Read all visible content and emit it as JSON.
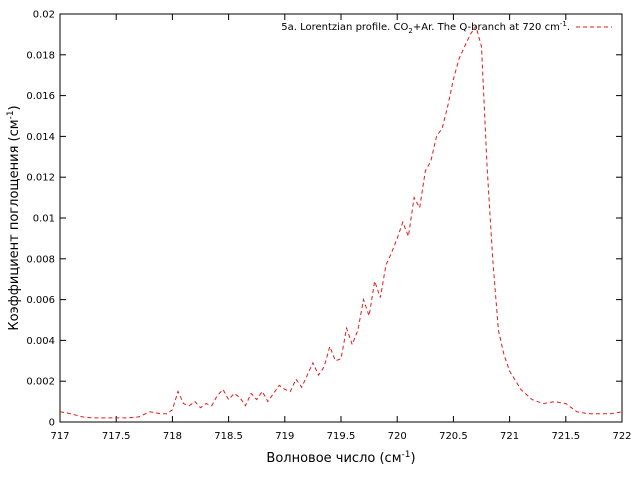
{
  "chart_data": {
    "type": "line",
    "title": "",
    "xlabel": {
      "base": "Волновое число (см",
      "sup": "-1",
      "tail": ")"
    },
    "ylabel": {
      "base": "Коэффициент поглощения (см",
      "sup": "-1",
      "tail": ")"
    },
    "xlim": [
      717,
      722
    ],
    "ylim": [
      0,
      0.02
    ],
    "xticks": [
      "717",
      "717.5",
      "718",
      "718.5",
      "719",
      "719.5",
      "720",
      "720.5",
      "721",
      "721.5",
      "722"
    ],
    "yticks": [
      "0",
      "0.002",
      "0.004",
      "0.006",
      "0.008",
      "0.01",
      "0.012",
      "0.014",
      "0.016",
      "0.018",
      "0.02"
    ],
    "grid": false,
    "legend_position": "top-right",
    "series": [
      {
        "name": "5a. Lorentzian profile.  CO2+Ar. The Q-branch at 720 cm-1.",
        "legend": {
          "part1": "5a. Lorentzian profile.  CO",
          "sub": "2",
          "part2": "+Ar. The Q-branch at 720 cm",
          "sup": "-1",
          "part3": "."
        },
        "color": "#e41a1c",
        "style": "dashed",
        "x": [
          717.0,
          717.1,
          717.2,
          717.3,
          717.4,
          717.5,
          717.6,
          717.7,
          717.8,
          717.9,
          717.95,
          718.0,
          718.05,
          718.1,
          718.15,
          718.2,
          718.25,
          718.3,
          718.35,
          718.4,
          718.45,
          718.5,
          718.55,
          718.6,
          718.65,
          718.7,
          718.75,
          718.8,
          718.85,
          718.9,
          718.95,
          719.0,
          719.05,
          719.1,
          719.15,
          719.2,
          719.25,
          719.3,
          719.35,
          719.4,
          719.45,
          719.5,
          719.55,
          719.6,
          719.65,
          719.7,
          719.75,
          719.8,
          719.85,
          719.9,
          719.95,
          720.0,
          720.05,
          720.1,
          720.15,
          720.2,
          720.25,
          720.3,
          720.35,
          720.4,
          720.45,
          720.5,
          720.55,
          720.6,
          720.65,
          720.7,
          720.75,
          720.8,
          720.85,
          720.9,
          720.95,
          721.0,
          721.1,
          721.2,
          721.3,
          721.4,
          721.5,
          721.6,
          721.7,
          721.8,
          721.9,
          722.0
        ],
        "y": [
          0.0005,
          0.0004,
          0.00025,
          0.0002,
          0.0002,
          0.0002,
          0.0002,
          0.00025,
          0.0005,
          0.0004,
          0.0004,
          0.0006,
          0.0015,
          0.0009,
          0.0008,
          0.001,
          0.0007,
          0.0009,
          0.0008,
          0.0013,
          0.0016,
          0.0011,
          0.0014,
          0.0012,
          0.0008,
          0.0014,
          0.0011,
          0.0015,
          0.001,
          0.0014,
          0.0018,
          0.0016,
          0.0015,
          0.0021,
          0.0017,
          0.0023,
          0.0029,
          0.0023,
          0.0027,
          0.0037,
          0.003,
          0.0031,
          0.0046,
          0.0038,
          0.0045,
          0.006,
          0.0052,
          0.0069,
          0.0061,
          0.0077,
          0.0083,
          0.009,
          0.0098,
          0.0091,
          0.011,
          0.0105,
          0.0123,
          0.0128,
          0.014,
          0.0144,
          0.0155,
          0.0168,
          0.0178,
          0.0184,
          0.019,
          0.0194,
          0.0184,
          0.0125,
          0.008,
          0.0045,
          0.0033,
          0.0025,
          0.0016,
          0.0011,
          0.0009,
          0.001,
          0.0009,
          0.0005,
          0.0004,
          0.0004,
          0.0004,
          0.0005
        ]
      }
    ]
  }
}
